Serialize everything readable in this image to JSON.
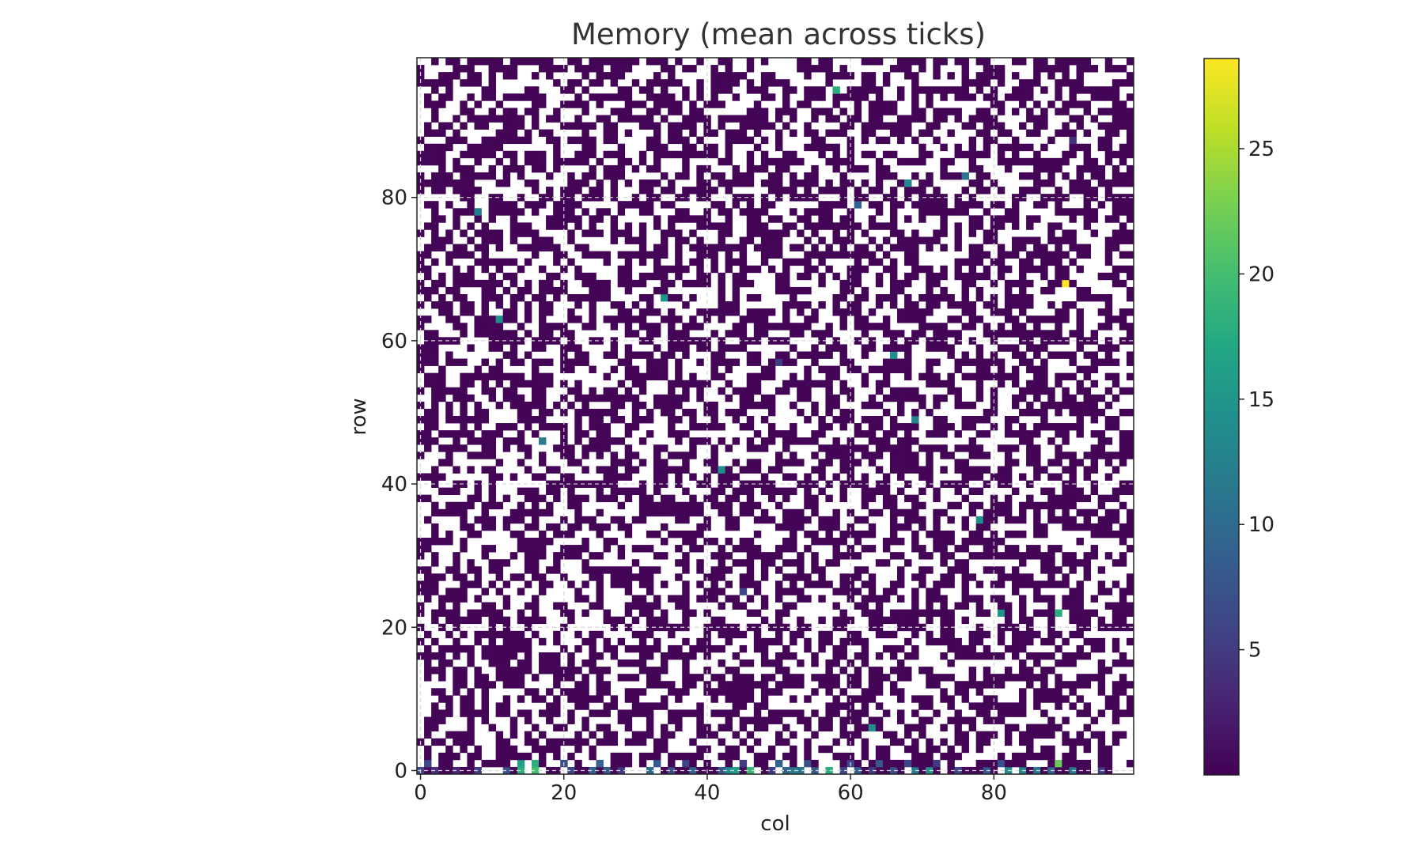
{
  "chart_data": {
    "type": "heatmap",
    "title": "Memory (mean across ticks)",
    "xlabel": "col",
    "ylabel": "row",
    "rows": 100,
    "cols": 100,
    "xlim": [
      0,
      99
    ],
    "ylim": [
      0,
      99
    ],
    "x_ticks": [
      0,
      20,
      40,
      60,
      80
    ],
    "y_ticks": [
      0,
      20,
      40,
      60,
      80
    ],
    "colormap": "viridis",
    "empty_color": "#ffffff",
    "base_value": 0.3,
    "empty_fraction": 0.47,
    "colorbar": {
      "range": [
        0,
        28.6
      ],
      "ticks": [
        5,
        10,
        15,
        20,
        25
      ]
    },
    "grid": true,
    "grid_style": "dashed",
    "row0_values": [
      {
        "col": 0,
        "value": 6
      },
      {
        "col": 2,
        "value": 4
      },
      {
        "col": 5,
        "value": 3
      },
      {
        "col": 8,
        "value": 5
      },
      {
        "col": 12,
        "value": 7
      },
      {
        "col": 14,
        "value": 18
      },
      {
        "col": 16,
        "value": 20
      },
      {
        "col": 21,
        "value": 6
      },
      {
        "col": 24,
        "value": 9
      },
      {
        "col": 26,
        "value": 8
      },
      {
        "col": 28,
        "value": 5
      },
      {
        "col": 32,
        "value": 10
      },
      {
        "col": 35,
        "value": 7
      },
      {
        "col": 38,
        "value": 9
      },
      {
        "col": 42,
        "value": 8
      },
      {
        "col": 43,
        "value": 14
      },
      {
        "col": 44,
        "value": 16
      },
      {
        "col": 46,
        "value": 19
      },
      {
        "col": 49,
        "value": 5
      },
      {
        "col": 51,
        "value": 9
      },
      {
        "col": 52,
        "value": 12
      },
      {
        "col": 53,
        "value": 11
      },
      {
        "col": 55,
        "value": 8
      },
      {
        "col": 57,
        "value": 18
      },
      {
        "col": 59,
        "value": 6
      },
      {
        "col": 61,
        "value": 9
      },
      {
        "col": 63,
        "value": 5
      },
      {
        "col": 66,
        "value": 7
      },
      {
        "col": 69,
        "value": 12
      },
      {
        "col": 71,
        "value": 15
      },
      {
        "col": 75,
        "value": 6
      },
      {
        "col": 79,
        "value": 8
      },
      {
        "col": 82,
        "value": 14
      },
      {
        "col": 84,
        "value": 13
      },
      {
        "col": 86,
        "value": 11
      },
      {
        "col": 88,
        "value": 9
      },
      {
        "col": 91,
        "value": 12
      },
      {
        "col": 95,
        "value": 5
      }
    ],
    "row1_values": [
      {
        "col": 1,
        "value": 6
      },
      {
        "col": 14,
        "value": 16
      },
      {
        "col": 16,
        "value": 18
      },
      {
        "col": 20,
        "value": 7
      },
      {
        "col": 25,
        "value": 9
      },
      {
        "col": 33,
        "value": 8
      },
      {
        "col": 37,
        "value": 6
      },
      {
        "col": 45,
        "value": 5
      },
      {
        "col": 50,
        "value": 9
      },
      {
        "col": 54,
        "value": 7
      },
      {
        "col": 60,
        "value": 6
      },
      {
        "col": 64,
        "value": 8
      },
      {
        "col": 68,
        "value": 6
      },
      {
        "col": 72,
        "value": 5
      },
      {
        "col": 81,
        "value": 7
      },
      {
        "col": 89,
        "value": 22
      }
    ],
    "highlights": [
      {
        "row": 95,
        "col": 58,
        "value": 18
      },
      {
        "row": 83,
        "col": 76,
        "value": 11
      },
      {
        "row": 82,
        "col": 68,
        "value": 13
      },
      {
        "row": 79,
        "col": 61,
        "value": 9
      },
      {
        "row": 78,
        "col": 8,
        "value": 12
      },
      {
        "row": 68,
        "col": 90,
        "value": 28.6
      },
      {
        "row": 66,
        "col": 34,
        "value": 15
      },
      {
        "row": 63,
        "col": 11,
        "value": 14
      },
      {
        "row": 58,
        "col": 66,
        "value": 14
      },
      {
        "row": 49,
        "col": 69,
        "value": 13
      },
      {
        "row": 46,
        "col": 17,
        "value": 12
      },
      {
        "row": 42,
        "col": 42,
        "value": 14
      },
      {
        "row": 35,
        "col": 78,
        "value": 14
      },
      {
        "row": 22,
        "col": 81,
        "value": 15
      },
      {
        "row": 22,
        "col": 89,
        "value": 18
      },
      {
        "row": 6,
        "col": 63,
        "value": 14
      },
      {
        "row": 25,
        "col": 45,
        "value": 6
      },
      {
        "row": 57,
        "col": 50,
        "value": 5
      },
      {
        "row": 88,
        "col": 91,
        "value": 4
      }
    ]
  }
}
